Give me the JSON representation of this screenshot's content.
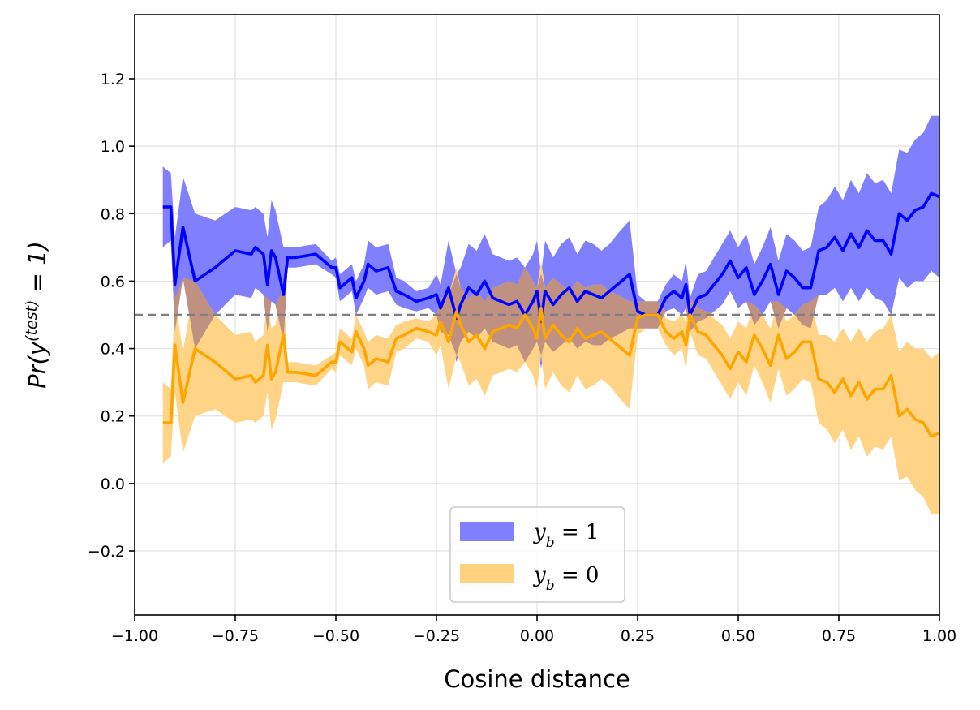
{
  "chart_data": {
    "type": "line",
    "title": "",
    "xlabel": "Cosine distance",
    "ylabel": "Pr(y(test) = 1)",
    "ylabel_parts": {
      "base": "Pr(y",
      "superscript": "(test)",
      "tail": " = 1)"
    },
    "xlim": [
      -1.0,
      1.0
    ],
    "ylim": [
      -0.39,
      1.39
    ],
    "xticks": [
      -1.0,
      -0.75,
      -0.5,
      -0.25,
      0.0,
      0.25,
      0.5,
      0.75,
      1.0
    ],
    "xtick_labels": [
      "−1.00",
      "−0.75",
      "−0.50",
      "−0.25",
      "0.00",
      "0.25",
      "0.50",
      "0.75",
      "1.00"
    ],
    "yticks": [
      -0.2,
      0.0,
      0.2,
      0.4,
      0.6,
      0.8,
      1.0,
      1.2
    ],
    "ytick_labels": [
      "−0.2",
      "0.0",
      "0.2",
      "0.4",
      "0.6",
      "0.8",
      "1.0",
      "1.2"
    ],
    "grid": true,
    "reference_line": {
      "y": 0.5,
      "style": "dashed",
      "color": "#808080"
    },
    "legend_position": "lower-center",
    "x": [
      -0.93,
      -0.91,
      -0.9,
      -0.88,
      -0.85,
      -0.8,
      -0.75,
      -0.71,
      -0.7,
      -0.68,
      -0.67,
      -0.66,
      -0.65,
      -0.63,
      -0.62,
      -0.6,
      -0.55,
      -0.51,
      -0.5,
      -0.49,
      -0.48,
      -0.46,
      -0.45,
      -0.43,
      -0.42,
      -0.4,
      -0.37,
      -0.35,
      -0.33,
      -0.3,
      -0.27,
      -0.25,
      -0.24,
      -0.22,
      -0.2,
      -0.19,
      -0.17,
      -0.15,
      -0.13,
      -0.11,
      -0.09,
      -0.07,
      -0.05,
      -0.03,
      -0.01,
      0.0,
      0.01,
      0.02,
      0.04,
      0.06,
      0.08,
      0.1,
      0.12,
      0.14,
      0.16,
      0.18,
      0.2,
      0.23,
      0.25,
      0.27,
      0.3,
      0.32,
      0.34,
      0.36,
      0.37,
      0.38,
      0.4,
      0.42,
      0.44,
      0.46,
      0.48,
      0.5,
      0.52,
      0.54,
      0.56,
      0.58,
      0.6,
      0.62,
      0.64,
      0.66,
      0.68,
      0.7,
      0.72,
      0.74,
      0.76,
      0.78,
      0.8,
      0.82,
      0.84,
      0.86,
      0.88,
      0.9,
      0.92,
      0.94,
      0.96,
      0.98,
      1.0
    ],
    "series": [
      {
        "name": "y_b = 1",
        "color": "#0000ff",
        "band_color": "#8080ff",
        "values": [
          0.82,
          0.82,
          0.59,
          0.76,
          0.6,
          0.64,
          0.69,
          0.68,
          0.7,
          0.68,
          0.59,
          0.69,
          0.67,
          0.56,
          0.67,
          0.67,
          0.68,
          0.64,
          0.64,
          0.58,
          0.59,
          0.61,
          0.55,
          0.6,
          0.65,
          0.63,
          0.64,
          0.57,
          0.56,
          0.54,
          0.55,
          0.56,
          0.52,
          0.58,
          0.49,
          0.53,
          0.58,
          0.56,
          0.6,
          0.55,
          0.54,
          0.53,
          0.54,
          0.5,
          0.54,
          0.57,
          0.48,
          0.57,
          0.53,
          0.56,
          0.58,
          0.54,
          0.57,
          0.56,
          0.55,
          0.57,
          0.59,
          0.62,
          0.51,
          0.5,
          0.5,
          0.55,
          0.57,
          0.55,
          0.59,
          0.5,
          0.55,
          0.56,
          0.59,
          0.62,
          0.66,
          0.61,
          0.64,
          0.56,
          0.6,
          0.65,
          0.56,
          0.63,
          0.61,
          0.58,
          0.58,
          0.69,
          0.7,
          0.73,
          0.69,
          0.74,
          0.7,
          0.75,
          0.72,
          0.72,
          0.68,
          0.8,
          0.78,
          0.81,
          0.82,
          0.86,
          0.85
        ],
        "lower": [
          0.7,
          0.72,
          0.45,
          0.61,
          0.4,
          0.5,
          0.56,
          0.55,
          0.58,
          0.56,
          0.45,
          0.54,
          0.53,
          0.42,
          0.64,
          0.64,
          0.65,
          0.62,
          0.61,
          0.54,
          0.55,
          0.57,
          0.5,
          0.55,
          0.58,
          0.56,
          0.57,
          0.53,
          0.52,
          0.51,
          0.52,
          0.5,
          0.45,
          0.44,
          0.36,
          0.42,
          0.45,
          0.43,
          0.46,
          0.42,
          0.41,
          0.4,
          0.41,
          0.36,
          0.4,
          0.42,
          0.34,
          0.42,
          0.39,
          0.41,
          0.43,
          0.4,
          0.42,
          0.41,
          0.41,
          0.43,
          0.44,
          0.46,
          0.46,
          0.46,
          0.46,
          0.51,
          0.52,
          0.5,
          0.52,
          0.45,
          0.48,
          0.49,
          0.51,
          0.53,
          0.57,
          0.52,
          0.54,
          0.47,
          0.5,
          0.54,
          0.46,
          0.52,
          0.5,
          0.47,
          0.46,
          0.56,
          0.56,
          0.58,
          0.54,
          0.58,
          0.54,
          0.58,
          0.55,
          0.54,
          0.5,
          0.61,
          0.58,
          0.6,
          0.6,
          0.63,
          0.61
        ],
        "upper": [
          0.94,
          0.92,
          0.73,
          0.91,
          0.8,
          0.78,
          0.82,
          0.81,
          0.82,
          0.8,
          0.73,
          0.84,
          0.81,
          0.7,
          0.7,
          0.7,
          0.71,
          0.66,
          0.67,
          0.62,
          0.63,
          0.65,
          0.6,
          0.65,
          0.72,
          0.7,
          0.71,
          0.61,
          0.6,
          0.57,
          0.58,
          0.62,
          0.59,
          0.72,
          0.62,
          0.64,
          0.71,
          0.69,
          0.74,
          0.68,
          0.67,
          0.66,
          0.67,
          0.64,
          0.68,
          0.72,
          0.62,
          0.72,
          0.67,
          0.71,
          0.73,
          0.68,
          0.72,
          0.71,
          0.69,
          0.71,
          0.74,
          0.78,
          0.56,
          0.54,
          0.54,
          0.59,
          0.62,
          0.6,
          0.66,
          0.55,
          0.62,
          0.63,
          0.67,
          0.71,
          0.75,
          0.7,
          0.74,
          0.65,
          0.7,
          0.76,
          0.66,
          0.74,
          0.72,
          0.69,
          0.7,
          0.82,
          0.84,
          0.88,
          0.84,
          0.9,
          0.86,
          0.92,
          0.89,
          0.9,
          0.86,
          0.99,
          0.98,
          1.02,
          1.04,
          1.09,
          1.09
        ]
      },
      {
        "name": "y_b = 0",
        "color": "#ffa500",
        "band_color": "#ffd280",
        "values": [
          0.18,
          0.18,
          0.41,
          0.24,
          0.4,
          0.36,
          0.31,
          0.32,
          0.3,
          0.32,
          0.41,
          0.31,
          0.33,
          0.44,
          0.33,
          0.33,
          0.32,
          0.36,
          0.36,
          0.42,
          0.41,
          0.39,
          0.45,
          0.4,
          0.35,
          0.37,
          0.36,
          0.43,
          0.44,
          0.46,
          0.45,
          0.44,
          0.48,
          0.42,
          0.51,
          0.47,
          0.42,
          0.44,
          0.4,
          0.45,
          0.46,
          0.47,
          0.46,
          0.5,
          0.46,
          0.43,
          0.52,
          0.43,
          0.47,
          0.44,
          0.42,
          0.46,
          0.43,
          0.44,
          0.45,
          0.43,
          0.41,
          0.38,
          0.49,
          0.5,
          0.5,
          0.45,
          0.43,
          0.45,
          0.41,
          0.5,
          0.45,
          0.44,
          0.41,
          0.38,
          0.34,
          0.39,
          0.36,
          0.44,
          0.4,
          0.35,
          0.44,
          0.37,
          0.39,
          0.42,
          0.42,
          0.31,
          0.3,
          0.27,
          0.31,
          0.26,
          0.3,
          0.25,
          0.28,
          0.28,
          0.32,
          0.2,
          0.22,
          0.19,
          0.18,
          0.14,
          0.15
        ],
        "lower": [
          0.06,
          0.08,
          0.27,
          0.09,
          0.2,
          0.22,
          0.18,
          0.19,
          0.18,
          0.2,
          0.27,
          0.16,
          0.19,
          0.3,
          0.3,
          0.3,
          0.29,
          0.34,
          0.33,
          0.38,
          0.37,
          0.35,
          0.4,
          0.35,
          0.28,
          0.3,
          0.29,
          0.39,
          0.4,
          0.43,
          0.42,
          0.38,
          0.41,
          0.28,
          0.38,
          0.36,
          0.29,
          0.31,
          0.26,
          0.32,
          0.33,
          0.34,
          0.33,
          0.36,
          0.32,
          0.28,
          0.38,
          0.28,
          0.33,
          0.29,
          0.27,
          0.32,
          0.28,
          0.29,
          0.31,
          0.29,
          0.26,
          0.22,
          0.44,
          0.46,
          0.46,
          0.41,
          0.38,
          0.4,
          0.34,
          0.45,
          0.38,
          0.37,
          0.33,
          0.29,
          0.25,
          0.3,
          0.26,
          0.35,
          0.3,
          0.24,
          0.34,
          0.26,
          0.28,
          0.31,
          0.3,
          0.18,
          0.16,
          0.12,
          0.16,
          0.1,
          0.14,
          0.08,
          0.11,
          0.1,
          0.14,
          0.01,
          0.02,
          -0.02,
          -0.04,
          -0.09,
          -0.09
        ],
        "upper": [
          0.3,
          0.28,
          0.55,
          0.39,
          0.6,
          0.5,
          0.44,
          0.45,
          0.42,
          0.44,
          0.55,
          0.46,
          0.47,
          0.58,
          0.36,
          0.36,
          0.35,
          0.38,
          0.39,
          0.46,
          0.45,
          0.43,
          0.5,
          0.45,
          0.42,
          0.44,
          0.43,
          0.47,
          0.48,
          0.49,
          0.48,
          0.5,
          0.55,
          0.56,
          0.64,
          0.58,
          0.55,
          0.57,
          0.54,
          0.58,
          0.59,
          0.6,
          0.59,
          0.64,
          0.6,
          0.58,
          0.66,
          0.58,
          0.61,
          0.59,
          0.57,
          0.6,
          0.58,
          0.59,
          0.59,
          0.57,
          0.56,
          0.54,
          0.54,
          0.54,
          0.54,
          0.49,
          0.48,
          0.5,
          0.48,
          0.55,
          0.52,
          0.51,
          0.49,
          0.47,
          0.43,
          0.48,
          0.46,
          0.53,
          0.5,
          0.46,
          0.54,
          0.48,
          0.5,
          0.53,
          0.54,
          0.44,
          0.44,
          0.42,
          0.46,
          0.42,
          0.46,
          0.42,
          0.45,
          0.46,
          0.5,
          0.39,
          0.42,
          0.4,
          0.4,
          0.37,
          0.39
        ]
      }
    ]
  },
  "legend": {
    "items": [
      {
        "label": "y_b = 1",
        "math_base": "y",
        "math_sub": "b",
        "math_tail": " = 1",
        "color": "#8080ff"
      },
      {
        "label": "y_b = 0",
        "math_base": "y",
        "math_sub": "b",
        "math_tail": " = 0",
        "color": "#ffd280"
      }
    ]
  }
}
